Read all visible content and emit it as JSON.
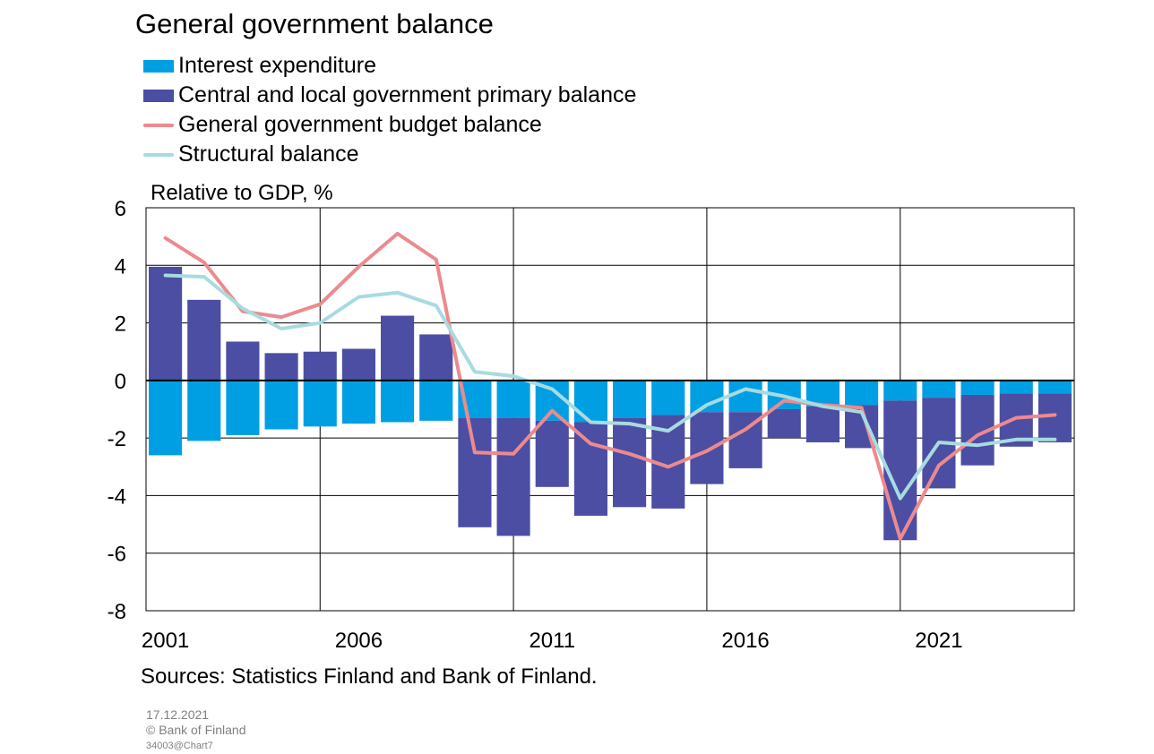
{
  "title": "General government balance",
  "unit_label": "Relative to GDP, %",
  "source": "Sources: Statistics Finland and Bank of Finland.",
  "meta": {
    "date": "17.12.2021",
    "copyright": "© Bank of Finland",
    "code": "34003@Chart7"
  },
  "colors": {
    "interest": "#009fe3",
    "primary": "#4b4ea3",
    "budget": "#ec8a8e",
    "structural": "#a8dbe0"
  },
  "legend": [
    {
      "label": "Interest expenditure",
      "kind": "box",
      "color": "#009fe3"
    },
    {
      "label": "Central and local government primary balance",
      "kind": "box",
      "color": "#4b4ea3"
    },
    {
      "label": "General government budget balance",
      "kind": "line",
      "color": "#ec8a8e"
    },
    {
      "label": "Structural balance",
      "kind": "line",
      "color": "#a8dbe0"
    }
  ],
  "chart_data": {
    "type": "bar",
    "title": "General government balance",
    "ylabel": "Relative to GDP, %",
    "ylim": [
      -8,
      6
    ],
    "yticks": [
      6,
      4,
      2,
      0,
      -2,
      -4,
      -6,
      -8
    ],
    "x": [
      2001,
      2002,
      2003,
      2004,
      2005,
      2006,
      2007,
      2008,
      2009,
      2010,
      2011,
      2012,
      2013,
      2014,
      2015,
      2016,
      2017,
      2018,
      2019,
      2020,
      2021,
      2022,
      2023,
      2024
    ],
    "xtick_labels": [
      "2001",
      "2006",
      "2011",
      "2016",
      "2021"
    ],
    "grid": true,
    "legend_position": "top-left",
    "series": [
      {
        "name": "Interest expenditure",
        "type": "bar",
        "color": "#009fe3",
        "values": [
          -2.6,
          -2.1,
          -1.9,
          -1.7,
          -1.6,
          -1.5,
          -1.45,
          -1.4,
          -1.3,
          -1.3,
          -1.4,
          -1.45,
          -1.3,
          -1.2,
          -1.1,
          -1.1,
          -1.0,
          -0.9,
          -0.85,
          -0.7,
          -0.6,
          -0.5,
          -0.45,
          -0.45
        ]
      },
      {
        "name": "Central and local government primary balance",
        "type": "bar",
        "color": "#4b4ea3",
        "values": [
          3.95,
          2.8,
          1.35,
          0.95,
          1.0,
          1.1,
          2.25,
          1.6,
          -3.8,
          -4.1,
          -2.3,
          -3.25,
          -3.1,
          -3.25,
          -2.5,
          -1.95,
          -1.0,
          -1.25,
          -1.5,
          -4.85,
          -3.15,
          -2.45,
          -1.85,
          -1.7
        ]
      },
      {
        "name": "General government budget balance",
        "type": "line",
        "color": "#ec8a8e",
        "values": [
          4.95,
          4.1,
          2.4,
          2.2,
          2.65,
          3.95,
          5.1,
          4.2,
          -2.5,
          -2.55,
          -1.05,
          -2.2,
          -2.55,
          -3.0,
          -2.45,
          -1.7,
          -0.7,
          -0.85,
          -0.95,
          -5.5,
          -2.95,
          -1.9,
          -1.3,
          -1.2
        ]
      },
      {
        "name": "Structural balance",
        "type": "line",
        "color": "#a8dbe0",
        "values": [
          3.65,
          3.6,
          2.5,
          1.8,
          2.0,
          2.9,
          3.05,
          2.6,
          0.3,
          0.15,
          -0.3,
          -1.45,
          -1.5,
          -1.75,
          -0.85,
          -0.3,
          -0.55,
          -0.9,
          -1.1,
          -4.1,
          -2.15,
          -2.25,
          -2.05,
          -2.05
        ]
      }
    ]
  }
}
